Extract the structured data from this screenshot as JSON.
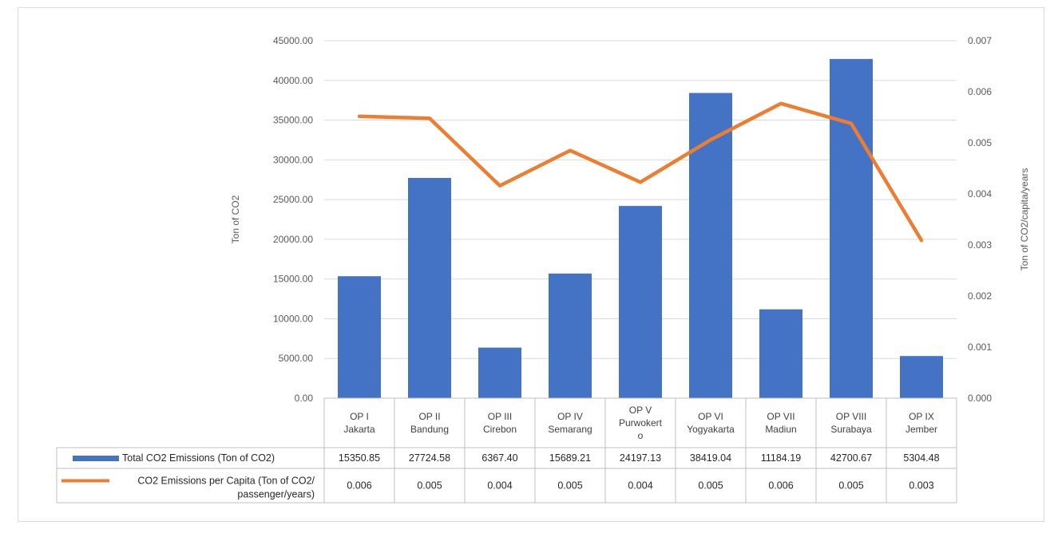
{
  "chart_data": {
    "type": "bar",
    "categories": [
      [
        "OP I",
        "Jakarta"
      ],
      [
        "OP II",
        "Bandung"
      ],
      [
        "OP III",
        "Cirebon"
      ],
      [
        "OP IV",
        "Semarang"
      ],
      [
        "OP V",
        "Purwokert",
        "o"
      ],
      [
        "OP VI",
        "Yogyakarta"
      ],
      [
        "OP VII",
        "Madiun"
      ],
      [
        "OP VIII",
        "Surabaya"
      ],
      [
        "OP IX",
        "Jember"
      ]
    ],
    "series": [
      {
        "name": "Total CO2 Emissions (Ton of CO2)",
        "type": "bar",
        "axis": "left",
        "color": "#4472c4",
        "values": [
          15350.85,
          27724.58,
          6367.4,
          15689.21,
          24197.13,
          38419.04,
          11184.19,
          42700.67,
          5304.48
        ],
        "table_values": [
          "15350.85",
          "27724.58",
          "6367.40",
          "15689.21",
          "24197.13",
          "38419.04",
          "11184.19",
          "42700.67",
          "5304.48"
        ]
      },
      {
        "name_lines": [
          "CO2 Emissions per Capita  (Ton of  CO2/",
          "passenger/years)"
        ],
        "type": "line",
        "axis": "right",
        "color": "#ed7d31",
        "values": [
          0.00552,
          0.00548,
          0.00416,
          0.00485,
          0.00423,
          0.00506,
          0.00577,
          0.00538,
          0.00309
        ],
        "table_values": [
          "0.006",
          "0.005",
          "0.004",
          "0.005",
          "0.004",
          "0.005",
          "0.006",
          "0.005",
          "0.003"
        ]
      }
    ],
    "ylabel": "Ton of CO2",
    "y2label": "Ton of CO2/capita/years",
    "ylim": [
      0,
      45000
    ],
    "y2lim": [
      0,
      0.007
    ],
    "yticks": [
      "0.00",
      "5000.00",
      "10000.00",
      "15000.00",
      "20000.00",
      "25000.00",
      "30000.00",
      "35000.00",
      "40000.00",
      "45000.00"
    ],
    "y2ticks": [
      "0.000",
      "0.001",
      "0.002",
      "0.003",
      "0.004",
      "0.005",
      "0.006",
      "0.007"
    ],
    "grid": true,
    "legend": "data table below chart",
    "grid_color": "#d9d9d9"
  }
}
